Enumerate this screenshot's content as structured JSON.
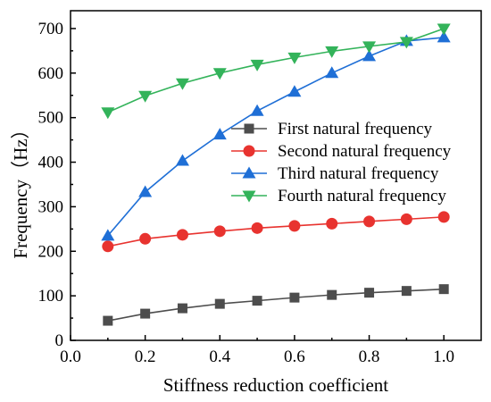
{
  "chart_data": {
    "type": "line",
    "xlabel": "Stiffness reduction coefficient",
    "ylabel": "Frequency（Hz）",
    "xlim": [
      0.0,
      1.1
    ],
    "ylim": [
      0,
      740
    ],
    "x_ticks": [
      0.0,
      0.2,
      0.4,
      0.6,
      0.8,
      1.0
    ],
    "x_tick_labels": [
      "0.0",
      "0.2",
      "0.4",
      "0.6",
      "0.8",
      "1.0"
    ],
    "y_ticks": [
      0,
      100,
      200,
      300,
      400,
      500,
      600,
      700
    ],
    "y_tick_labels": [
      "0",
      "100",
      "200",
      "300",
      "400",
      "500",
      "600",
      "700"
    ],
    "grid": false,
    "legend_position": "center-right",
    "x": [
      0.1,
      0.2,
      0.3,
      0.4,
      0.5,
      0.6,
      0.7,
      0.8,
      0.9,
      1.0
    ],
    "series": [
      {
        "name": "First natural frequency",
        "marker": "square",
        "color": "#4d4d4d",
        "values": [
          44,
          60,
          72,
          82,
          89,
          96,
          102,
          107,
          111,
          115
        ]
      },
      {
        "name": "Second natural frequency",
        "marker": "circle",
        "color": "#e8332f",
        "values": [
          211,
          228,
          237,
          245,
          252,
          257,
          262,
          267,
          272,
          277
        ]
      },
      {
        "name": "Third natural frequency",
        "marker": "triangle-up",
        "color": "#1f6fd6",
        "values": [
          235,
          333,
          403,
          462,
          515,
          558,
          600,
          638,
          672,
          680
        ]
      },
      {
        "name": "Fourth natural frequency",
        "marker": "triangle-down",
        "color": "#33b35a",
        "values": [
          512,
          549,
          577,
          600,
          619,
          635,
          649,
          660,
          670,
          700
        ]
      }
    ]
  }
}
